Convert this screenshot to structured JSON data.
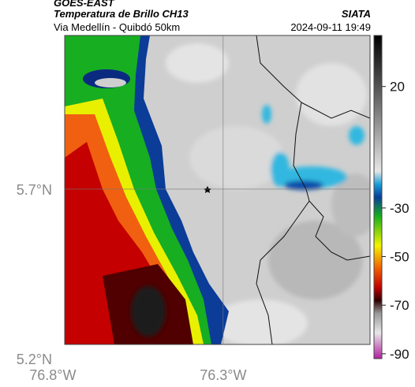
{
  "header": {
    "source": "GOES-EAST",
    "product": "Temperatura de Brillo CH13",
    "agency": "SIATA",
    "route": "Via Medellín - Quibdó 50km",
    "datetime": "2024-09-11 19:49"
  },
  "map": {
    "xlim": [
      -76.765,
      -75.869
    ],
    "ylim": [
      5.242,
      6.153
    ],
    "xticks": [
      {
        "value": -76.8,
        "label": "76.8°W"
      },
      {
        "value": -76.3,
        "label": "76.3°W"
      }
    ],
    "yticks": [
      {
        "value": 5.7,
        "label": "5.7°N"
      },
      {
        "value": 5.2,
        "label": "5.2°N"
      }
    ]
  },
  "colorbar": {
    "clim": [
      -92,
      41
    ],
    "ticks": [
      20,
      -30,
      -50,
      -70,
      -90
    ]
  }
}
